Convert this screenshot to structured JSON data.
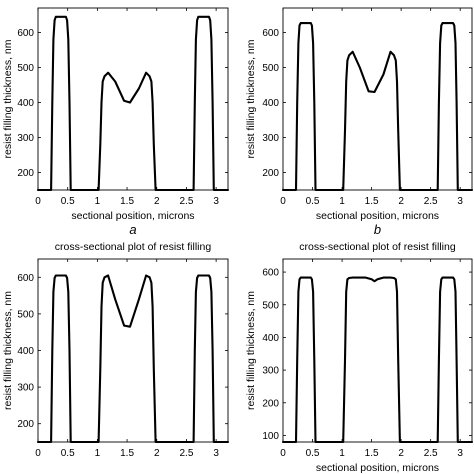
{
  "chart_data": [
    {
      "type": "line",
      "panel_label": "a",
      "title": "",
      "xlabel": "sectional position, microns",
      "ylabel": "resist filling thickness, nm",
      "xlim": [
        0,
        3.2
      ],
      "ylim": [
        150,
        670
      ],
      "xticks": [
        0,
        0.5,
        1,
        1.5,
        2,
        2.5,
        3
      ],
      "yticks": [
        200,
        300,
        400,
        500,
        600
      ],
      "grid": false,
      "series": [
        {
          "x": [
            0,
            0.22,
            0.24,
            0.26,
            0.28,
            0.3,
            0.32,
            0.45,
            0.47,
            0.49,
            0.51,
            0.53,
            0.55,
            0.58,
            1.02,
            1.05,
            1.07,
            1.09,
            1.12,
            1.18,
            1.3,
            1.45,
            1.55,
            1.7,
            1.82,
            1.88,
            1.91,
            1.93,
            1.95,
            1.98,
            2.62,
            2.64,
            2.66,
            2.68,
            2.7,
            2.72,
            2.86,
            2.88,
            2.9,
            2.92,
            2.94,
            2.96,
            3.2
          ],
          "y": [
            150,
            150,
            400,
            580,
            635,
            645,
            645,
            645,
            645,
            635,
            580,
            400,
            150,
            150,
            150,
            280,
            400,
            460,
            475,
            485,
            460,
            405,
            400,
            440,
            485,
            475,
            460,
            400,
            280,
            150,
            150,
            400,
            580,
            635,
            645,
            645,
            645,
            645,
            635,
            580,
            400,
            150,
            150
          ]
        }
      ]
    },
    {
      "type": "line",
      "panel_label": "b",
      "title": "",
      "xlabel": "sectional position, microns",
      "ylabel": "resist filling thickness, nm",
      "xlim": [
        0,
        3.2
      ],
      "ylim": [
        150,
        670
      ],
      "xticks": [
        0,
        0.5,
        1,
        1.5,
        2,
        2.5,
        3
      ],
      "yticks": [
        200,
        300,
        400,
        500,
        600
      ],
      "grid": false,
      "series": [
        {
          "x": [
            0,
            0.22,
            0.24,
            0.26,
            0.28,
            0.3,
            0.32,
            0.45,
            0.47,
            0.49,
            0.51,
            0.53,
            0.55,
            0.58,
            1.02,
            1.05,
            1.07,
            1.09,
            1.12,
            1.18,
            1.3,
            1.45,
            1.55,
            1.7,
            1.82,
            1.88,
            1.91,
            1.93,
            1.95,
            1.98,
            2.62,
            2.64,
            2.66,
            2.68,
            2.7,
            2.72,
            2.86,
            2.88,
            2.9,
            2.92,
            2.94,
            2.96,
            3.2
          ],
          "y": [
            150,
            150,
            400,
            570,
            620,
            627,
            627,
            627,
            627,
            620,
            570,
            400,
            150,
            150,
            150,
            320,
            460,
            520,
            535,
            545,
            500,
            432,
            430,
            480,
            545,
            535,
            520,
            460,
            320,
            150,
            150,
            400,
            570,
            620,
            627,
            627,
            627,
            627,
            620,
            570,
            400,
            150,
            150
          ]
        }
      ]
    },
    {
      "type": "line",
      "panel_label": "",
      "title": "cross-sectional plot of resist filling",
      "xlabel": "",
      "ylabel": "resist filling thickness, nm",
      "xlim": [
        0,
        3.2
      ],
      "ylim": [
        150,
        650
      ],
      "xticks": [
        0,
        0.5,
        1,
        1.5,
        2,
        2.5,
        3
      ],
      "yticks": [
        200,
        300,
        400,
        500,
        600
      ],
      "grid": false,
      "series": [
        {
          "x": [
            0,
            0.22,
            0.24,
            0.26,
            0.28,
            0.3,
            0.32,
            0.45,
            0.47,
            0.49,
            0.51,
            0.53,
            0.55,
            0.58,
            1.02,
            1.05,
            1.07,
            1.09,
            1.12,
            1.18,
            1.3,
            1.45,
            1.55,
            1.7,
            1.82,
            1.88,
            1.91,
            1.93,
            1.95,
            1.98,
            2.62,
            2.64,
            2.66,
            2.68,
            2.7,
            2.72,
            2.86,
            2.88,
            2.9,
            2.92,
            2.94,
            2.96,
            3.2
          ],
          "y": [
            150,
            150,
            400,
            560,
            598,
            605,
            605,
            605,
            605,
            598,
            560,
            400,
            150,
            150,
            150,
            350,
            520,
            585,
            600,
            605,
            540,
            468,
            465,
            540,
            605,
            600,
            585,
            520,
            350,
            150,
            150,
            400,
            560,
            598,
            605,
            605,
            605,
            605,
            598,
            560,
            400,
            150,
            150
          ]
        }
      ]
    },
    {
      "type": "line",
      "panel_label": "",
      "title": "cross-sectional plot of resist filling",
      "xlabel": "sectional position, microns",
      "ylabel": "resist filling thickness, nm",
      "xlim": [
        0,
        3.2
      ],
      "ylim": [
        80,
        640
      ],
      "xticks": [
        0,
        0.5,
        1,
        1.5,
        2,
        2.5,
        3
      ],
      "yticks": [
        100,
        200,
        300,
        400,
        500,
        600
      ],
      "grid": false,
      "series": [
        {
          "x": [
            0,
            0.22,
            0.24,
            0.26,
            0.28,
            0.3,
            0.32,
            0.45,
            0.47,
            0.49,
            0.51,
            0.53,
            0.55,
            0.58,
            1.02,
            1.05,
            1.07,
            1.09,
            1.12,
            1.18,
            1.4,
            1.5,
            1.55,
            1.6,
            1.7,
            1.82,
            1.88,
            1.91,
            1.93,
            1.95,
            1.98,
            2.62,
            2.64,
            2.66,
            2.68,
            2.7,
            2.72,
            2.86,
            2.88,
            2.9,
            2.92,
            2.94,
            2.96,
            3.2
          ],
          "y": [
            80,
            80,
            330,
            540,
            578,
            583,
            583,
            583,
            583,
            578,
            540,
            330,
            80,
            80,
            80,
            330,
            540,
            578,
            582,
            583,
            583,
            578,
            572,
            578,
            583,
            583,
            582,
            578,
            540,
            330,
            80,
            80,
            330,
            540,
            578,
            583,
            583,
            583,
            583,
            578,
            540,
            330,
            80,
            80
          ]
        }
      ]
    }
  ]
}
